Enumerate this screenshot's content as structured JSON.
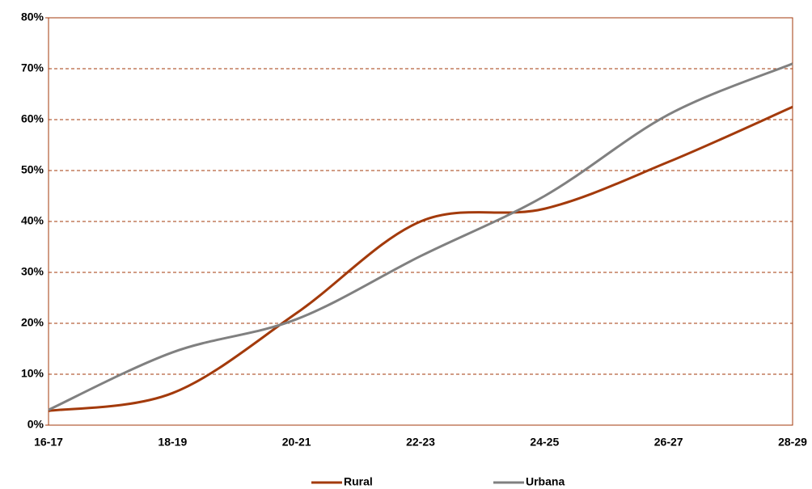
{
  "chart_data": {
    "type": "line",
    "categories": [
      "16-17",
      "18-19",
      "20-21",
      "22-23",
      "24-25",
      "26-27",
      "28-29"
    ],
    "series": [
      {
        "name": "Rural",
        "color": "#a33a0b",
        "values": [
          2.8,
          6.3,
          22,
          40,
          42.5,
          51.7,
          62.5
        ]
      },
      {
        "name": "Urbana",
        "color": "#808080",
        "values": [
          3,
          14.3,
          20.8,
          33.2,
          45,
          61,
          71
        ]
      }
    ],
    "ylim": [
      0,
      80
    ],
    "yticks": [
      {
        "value": 0,
        "label": "0%"
      },
      {
        "value": 10,
        "label": "10%"
      },
      {
        "value": 20,
        "label": "20%"
      },
      {
        "value": 30,
        "label": "30%"
      },
      {
        "value": 40,
        "label": "40%"
      },
      {
        "value": 50,
        "label": "50%"
      },
      {
        "value": 60,
        "label": "60%"
      },
      {
        "value": 70,
        "label": "70%"
      },
      {
        "value": 80,
        "label": "80%"
      }
    ],
    "grid": true,
    "smooth": true,
    "legend": "bottom"
  }
}
